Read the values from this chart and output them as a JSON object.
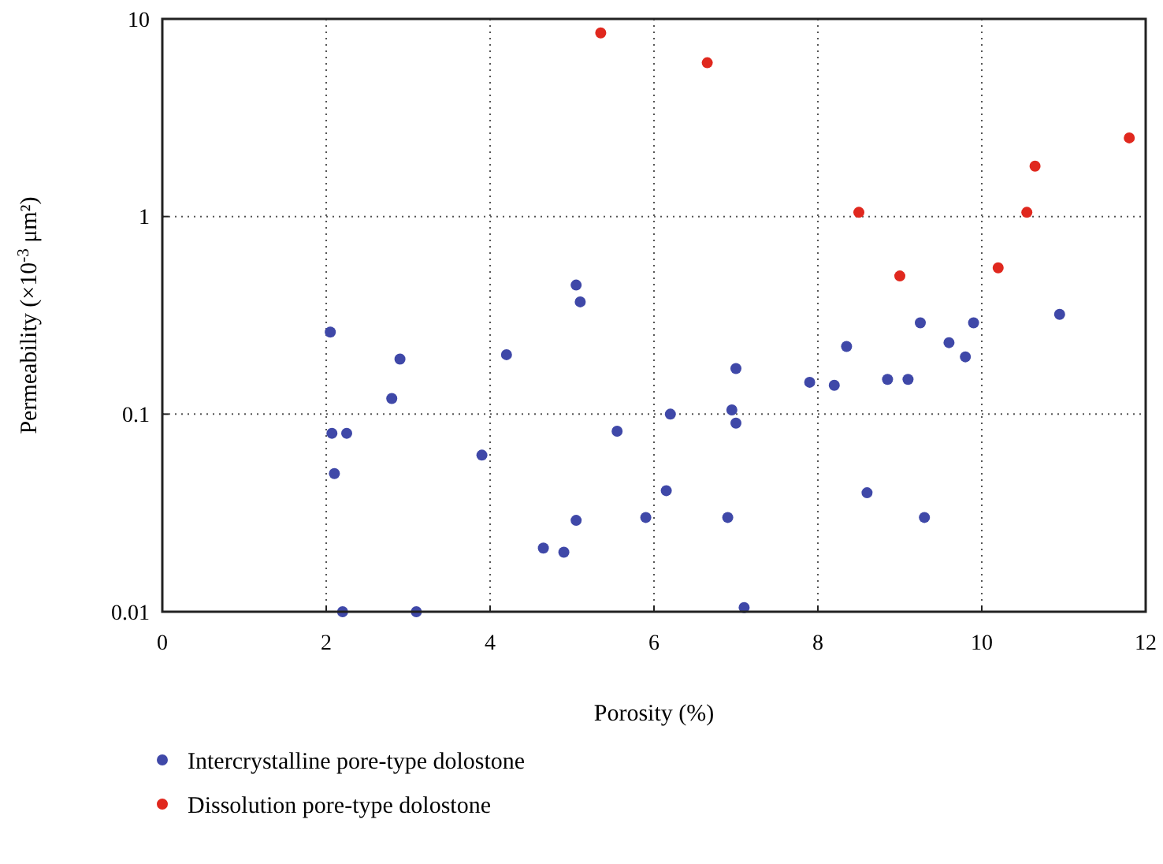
{
  "chart_data": {
    "type": "scatter",
    "xlabel": "Porosity (%)",
    "ylabel": "Permeability (×10$^{-3}$ μm²)",
    "log": "y",
    "xlim": [
      0,
      12
    ],
    "xticks": [
      0,
      2,
      4,
      6,
      8,
      10,
      12
    ],
    "ylim": [
      0.01,
      10
    ],
    "yticks": [
      0.01,
      0.1,
      1,
      10
    ],
    "grid": true,
    "legend": "bottom",
    "marker": "circle",
    "series": [
      {
        "name": "Intercrystalline pore-type dolostone",
        "color": "#3f48a8",
        "x": [
          2.05,
          2.07,
          2.1,
          2.25,
          2.2,
          2.8,
          2.9,
          3.1,
          3.9,
          4.2,
          4.65,
          4.9,
          5.05,
          5.1,
          5.05,
          5.55,
          5.9,
          6.15,
          6.2,
          6.9,
          6.95,
          7.0,
          7.0,
          7.1,
          7.9,
          8.2,
          8.35,
          8.6,
          8.85,
          9.1,
          9.25,
          9.3,
          9.6,
          9.8,
          9.9,
          10.95
        ],
        "values": [
          0.26,
          0.08,
          0.05,
          0.08,
          0.01,
          0.12,
          0.19,
          0.01,
          0.062,
          0.2,
          0.021,
          0.02,
          0.45,
          0.37,
          0.029,
          0.082,
          0.03,
          0.041,
          0.1,
          0.03,
          0.105,
          0.17,
          0.09,
          0.0105,
          0.145,
          0.14,
          0.22,
          0.04,
          0.15,
          0.15,
          0.29,
          0.03,
          0.23,
          0.195,
          0.29,
          0.32
        ]
      },
      {
        "name": "Dissolution pore-type dolostone",
        "color": "#e0281e",
        "x": [
          5.35,
          6.65,
          8.5,
          9.0,
          10.2,
          10.55,
          10.65,
          11.8
        ],
        "values": [
          8.5,
          6,
          1.05,
          0.5,
          0.55,
          1.05,
          1.8,
          2.5
        ]
      }
    ]
  }
}
